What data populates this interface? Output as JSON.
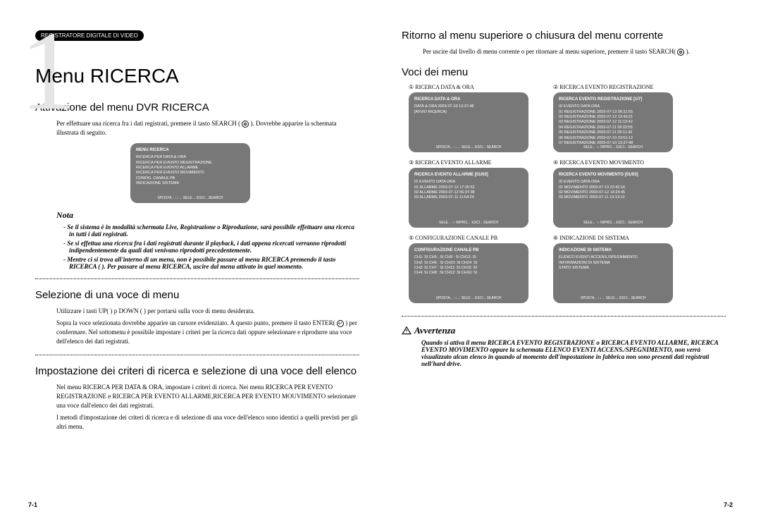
{
  "header_pill": "REGISTRATORE DIGITALE DI VIDEO",
  "chapter_numeral": "1",
  "page_left_num": "7-1",
  "page_right_num": "7-2",
  "left": {
    "title": "Menu RICERCA",
    "sec1": {
      "heading": "Attivazione del menu DVR RICERCA",
      "p1a": "Per effettuare una ricerca fra i dati registrati, premere il tasto SEARCH (",
      "p1b": "). Dovrebbe apparire la schermata illustrata di seguito.",
      "screen": {
        "title": "MENU RICERCA",
        "lines": [
          "RICERCA PER DATA & ORA",
          "RICERCA PER EVENTO REGISTRAZIONE",
          "RICERCA PER EVENTO ALLARME",
          "RICERCA PER EVENTO MOVIMENTO",
          "CONFIG. CANALE PB",
          "INDICAZIONE SISTEMA"
        ],
        "footer": "SPOSTA←↑↓→ SELE.←ESCI←SEARCH"
      }
    },
    "nota_label": "Nota",
    "nota_items": [
      "- Se il sistema è in modalità schermata Live, Registrazione o Riproduzione, sarà possibile effettuare una ricerca in tutti i dati registrati.",
      "- Se si effettua una ricerca fra i dati registrati durante il playback, i dati appena ricercati verranno riprodotti indipendentemente da quali dati venivano riprodotti precedentemente.",
      "- Mentre ci si trova all'interno di un menu, non è possibile passare al menu RICERCA premendo il tasto RICERCA (      ). Per passare al menu RICERCA, uscire dal menu attivato in quel momento."
    ],
    "sec2": {
      "heading": "Selezione di una voce di menu",
      "p1": "Utilizzare i tasti UP(  ) p DOWN (  ) per portarsi sulla voce di menu desiderata.",
      "p2a": "Sopra la voce selezionata dovrebbe apparire un cursore evidenziato. A questo punto, premere il tasto ENTER(",
      "p2b": ") per confermare. Nel sottomenu è possibile impostare i criteri per la ricerca dati oppure selezionare e riprodurre una voce dell'elenco dei dati registrati."
    },
    "sec3": {
      "heading": "Impostazione dei criteri di ricerca e selezione di una voce dell elenco",
      "p1": "Nel menu RICERCA PER DATA & ORA, impostare i criteri di ricerca. Nei menu RICERCA PER EVENTO REGISTRAZIONE e RICERCA PER EVENTO ALLARME,RICERCA PER EVENTO MOUVIMENTO selezionare una voce dall'elenco dei dati registrati.",
      "p2": "I metodi d'impostazione dei criteri di ricerca e di selezione di una voce dell'elenco sono identici a quelli previsti per gli altri menu."
    }
  },
  "right": {
    "sec4": {
      "heading": "Ritorno al menu superiore o chiusura del menu corrente",
      "p1a": "Per uscire dal livello di menu corrente o per ritornare al menu superiore, premere il tasto SEARCH(",
      "p1b": ")."
    },
    "voci_heading": "Voci dei menu",
    "cells": [
      {
        "num": "①",
        "label": "RICERCA DATA & ORA",
        "screen": {
          "title": "RICERCA DATA & ORA",
          "lines": [
            "DATA & ORA  2003-07-10 13:37:48",
            "[AVVIO RICERCA]"
          ],
          "footer": "SPOSTA←↑↓→ SELE.←ESCI←SEARCH"
        }
      },
      {
        "num": "②",
        "label": "RICERCA EVENTO REGISTRAZIONE",
        "screen": {
          "title": "RICERCA EVENTO REGISTRAZIONE   [1/7]",
          "lines": [
            " ID   EVENTO          DATA        ORA",
            "01  REGISTRAZIONE 2003-07-13 06:31:55",
            "02  REGISTRAZIONE 2003-07-12 13:43:21",
            "03  REGISTRAZIONE 2003-07-12 11:13:42",
            "04  REGISTRAZIONE 2003-07-11 09:23:55",
            "05  REGISTRAZIONE 2003-07-11 05:11:42",
            "06  REGISTRAZIONE 2003-07-10 23:51:12",
            "07  REGISTRAZIONE 2003-07-10 13:37:48"
          ],
          "footer": "SELE←↑↓ RIPRO.←ESCI←SEARCH"
        }
      },
      {
        "num": "③",
        "label": "RICERCA EVENTO ALLARME",
        "screen": {
          "title": "RICERCA EVENTO ALLARME   [01/03]",
          "lines": [
            " ID   EVENTO     DATA        ORA",
            "01  ALLARME  2003-07-12 17:25:52",
            "02  ALLARME  2003-07-12 06:37:38",
            "03  ALLARME  2003-07-11 11:54:24"
          ],
          "footer": "SELE←↑↓ RIPRO.←ESCI←SEARCH"
        }
      },
      {
        "num": "④",
        "label": "RICERCA EVENTO MOVIMENTO",
        "screen": {
          "title": "RICERCA EVENTO MOVIMENTO   [01/03]",
          "lines": [
            " ID   EVENTO        DATA        ORA",
            "01  MOVIMENTO 2003-07-13 22:42:16",
            "02  MOVIMENTO 2003-07-12 14:24:45",
            "03  MOVIMENTO 2003-07-11 13:13:12"
          ],
          "footer": "SELE←↑↓ RIPRO.←ESCI←SEARCH"
        }
      },
      {
        "num": "⑤",
        "label": "CONFIGURAZIONE CANALE PB",
        "screen": {
          "title": "CONFIGURAZIONE CANALE PB",
          "lines": [
            "CH1: SI CH5 : SI CH9  : SI CH13: SI",
            "CH2: SI CH6 : SI CH10: SI CH14: SI",
            "CH3: SI CH7 : SI CH11: SI CH15: SI",
            "CH4: SI CH8 : SI CH12: SI CH16: SI"
          ],
          "footer": "SPOSTA←↑↓→ SELE.←ESCI←SEARCH"
        }
      },
      {
        "num": "⑥",
        "label": "INDICAZIONE DI SISTEMA",
        "screen": {
          "title": "INDICAZIONE DI SISTEMA",
          "lines": [
            "ELENCO EVENTI ACCENS./SPEGNIMENTO",
            "INFORMAZIONI DI SISTEMA",
            "STATO SISTEMA"
          ],
          "footer": "SPOSTA←↑↓→ SELE.←ESCI←SEARCH"
        }
      }
    ],
    "avvert_label": "Avvertenza",
    "avvert_body": "Quando si attiva il menu RICERCA EVENTO REGISTRAZIONE o RICERCA EVENTO ALLARME, RICERCA EVENTO MOVIMENTO oppure la schermata ELENCO EVENTI ACCENS./SPEGNIMENTO, non verrà visualizzato alcun elenco in quando al momento dell'impostazione in fabbrica non sono presenti dati registrati nell'hard drive."
  }
}
